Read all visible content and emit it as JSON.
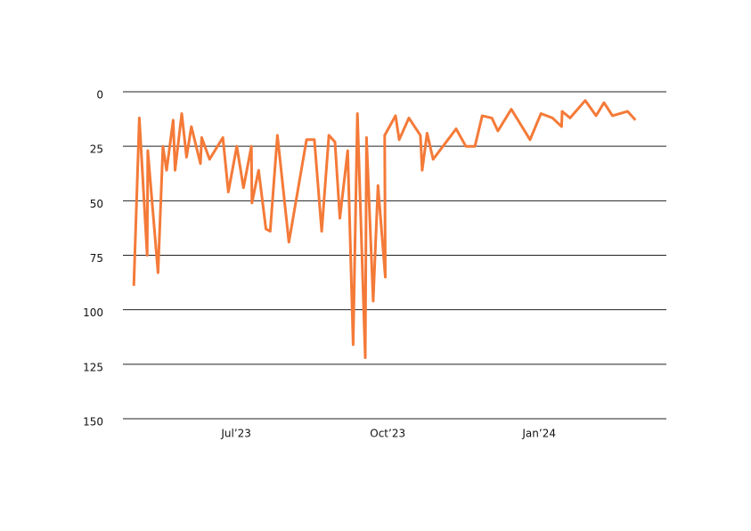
{
  "chart_data": {
    "type": "line",
    "x": [
      2023.331,
      2023.34,
      2023.353,
      2023.354,
      2023.371,
      2023.379,
      2023.385,
      2023.396,
      2023.399,
      2023.41,
      2023.418,
      2023.426,
      2023.441,
      2023.443,
      2023.456,
      2023.478,
      2023.487,
      2023.501,
      2023.512,
      2023.525,
      2023.526,
      2023.537,
      2023.549,
      2023.556,
      2023.568,
      2023.587,
      2023.616,
      2023.629,
      2023.641,
      2023.653,
      2023.663,
      2023.671,
      2023.684,
      2023.693,
      2023.7,
      2023.713,
      2023.715,
      2023.726,
      2023.734,
      2023.746,
      2023.745,
      2023.763,
      2023.769,
      2023.785,
      2023.804,
      2023.807,
      2023.815,
      2023.825,
      2023.863,
      2023.879,
      2023.894,
      2023.906,
      2023.922,
      2023.932,
      2023.954,
      2023.985,
      2024.003,
      2024.022,
      2024.037,
      2024.038,
      2024.051,
      2024.076,
      2024.094,
      2024.107,
      2024.121,
      2024.146,
      2024.159
    ],
    "series": [
      {
        "color": "#f47a38",
        "values": [
          89,
          12,
          75,
          27,
          83,
          25,
          36,
          13,
          36,
          10,
          30,
          16,
          33,
          21,
          31,
          21,
          46,
          25,
          44,
          25,
          51,
          36,
          63,
          64,
          20,
          69,
          22,
          22,
          64,
          20,
          23,
          58,
          27,
          116,
          10,
          122,
          21,
          96,
          43,
          85,
          20,
          11,
          22,
          12,
          20,
          36,
          19,
          31,
          17,
          25,
          25,
          11,
          12,
          18,
          8,
          22,
          10,
          12,
          16,
          9,
          12,
          4,
          11,
          5,
          11,
          9,
          13
        ]
      }
    ],
    "xlim": [
      2023.313,
      2024.21
    ],
    "xticks": [
      {
        "value": 2023.5,
        "label": "Jul’23"
      },
      {
        "value": 2023.75,
        "label": "Oct’23"
      },
      {
        "value": 2024.0,
        "label": "Jan’24"
      }
    ],
    "ylim": [
      0,
      150
    ],
    "yticks": [
      0,
      25,
      50,
      75,
      100,
      125,
      150
    ],
    "y_inverted": true,
    "grid": true
  }
}
